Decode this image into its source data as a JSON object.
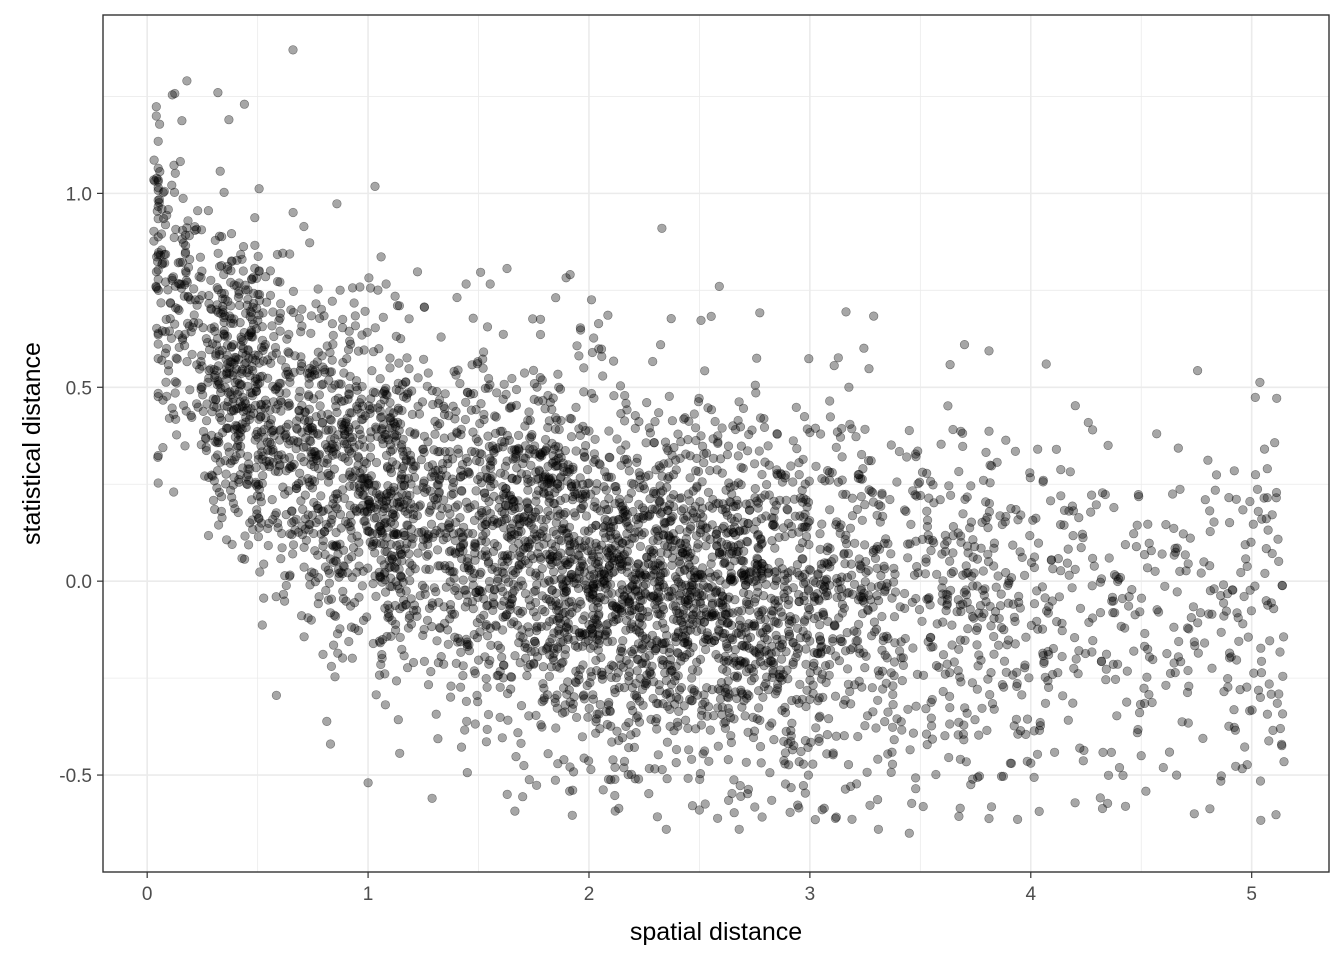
{
  "chart_data": {
    "type": "scatter",
    "title": "",
    "xlabel": "spatial distance",
    "ylabel": "statistical distance",
    "xlim": [
      -0.2,
      5.35
    ],
    "ylim": [
      -0.75,
      1.46
    ],
    "x_ticks": [
      0,
      1,
      2,
      3,
      4,
      5
    ],
    "x_tick_labels": [
      "0",
      "1",
      "2",
      "3",
      "4",
      "5"
    ],
    "y_ticks": [
      -0.5,
      0.0,
      0.5,
      1.0
    ],
    "y_tick_labels": [
      "-0.5",
      "0.0",
      "0.5",
      "1.0"
    ],
    "grid": true,
    "point_color": "#000000",
    "point_alpha": 0.35,
    "panel_background": "#ffffff",
    "grid_color": "#ebebeb",
    "border_color": "#333333",
    "points_estimated": 5000,
    "notable_points": [
      [
        0.66,
        1.37
      ],
      [
        0.18,
        1.29
      ],
      [
        0.32,
        1.26
      ],
      [
        0.44,
        1.23
      ],
      [
        0.37,
        1.19
      ],
      [
        0.04,
        0.76
      ],
      [
        0.12,
        0.23
      ],
      [
        2.33,
        0.91
      ],
      [
        2.59,
        0.76
      ],
      [
        3.7,
        0.61
      ],
      [
        4.07,
        0.56
      ],
      [
        4.57,
        0.38
      ],
      [
        4.79,
        0.21
      ],
      [
        5.03,
        0.18
      ],
      [
        5.06,
        0.02
      ],
      [
        5.13,
        -0.38
      ],
      [
        4.74,
        -0.6
      ],
      [
        4.66,
        -0.5
      ],
      [
        4.5,
        -0.45
      ],
      [
        3.45,
        -0.65
      ],
      [
        3.31,
        -0.64
      ],
      [
        2.35,
        -0.64
      ],
      [
        2.68,
        -0.64
      ],
      [
        2.5,
        -0.59
      ],
      [
        1.29,
        -0.56
      ],
      [
        1.0,
        -0.52
      ],
      [
        0.83,
        -0.42
      ],
      [
        1.63,
        -0.55
      ],
      [
        4.83,
        -0.02
      ],
      [
        4.81,
        0.04
      ],
      [
        4.28,
        0.39
      ],
      [
        4.35,
        0.35
      ]
    ],
    "density_model": {
      "x_distribution": "skewed, peak near 2.3, range 0.03 to 5.15",
      "y_trend": "decreasing: about 0.85 at x=0.1, 0.55 at x=0.7, 0.35 at x=1.3, 0.15 at x=2.0, 0.05 at x=2.6, -0.02 at x=3.5, -0.05 at x=4.5",
      "y_spread_sd": 0.2
    }
  }
}
